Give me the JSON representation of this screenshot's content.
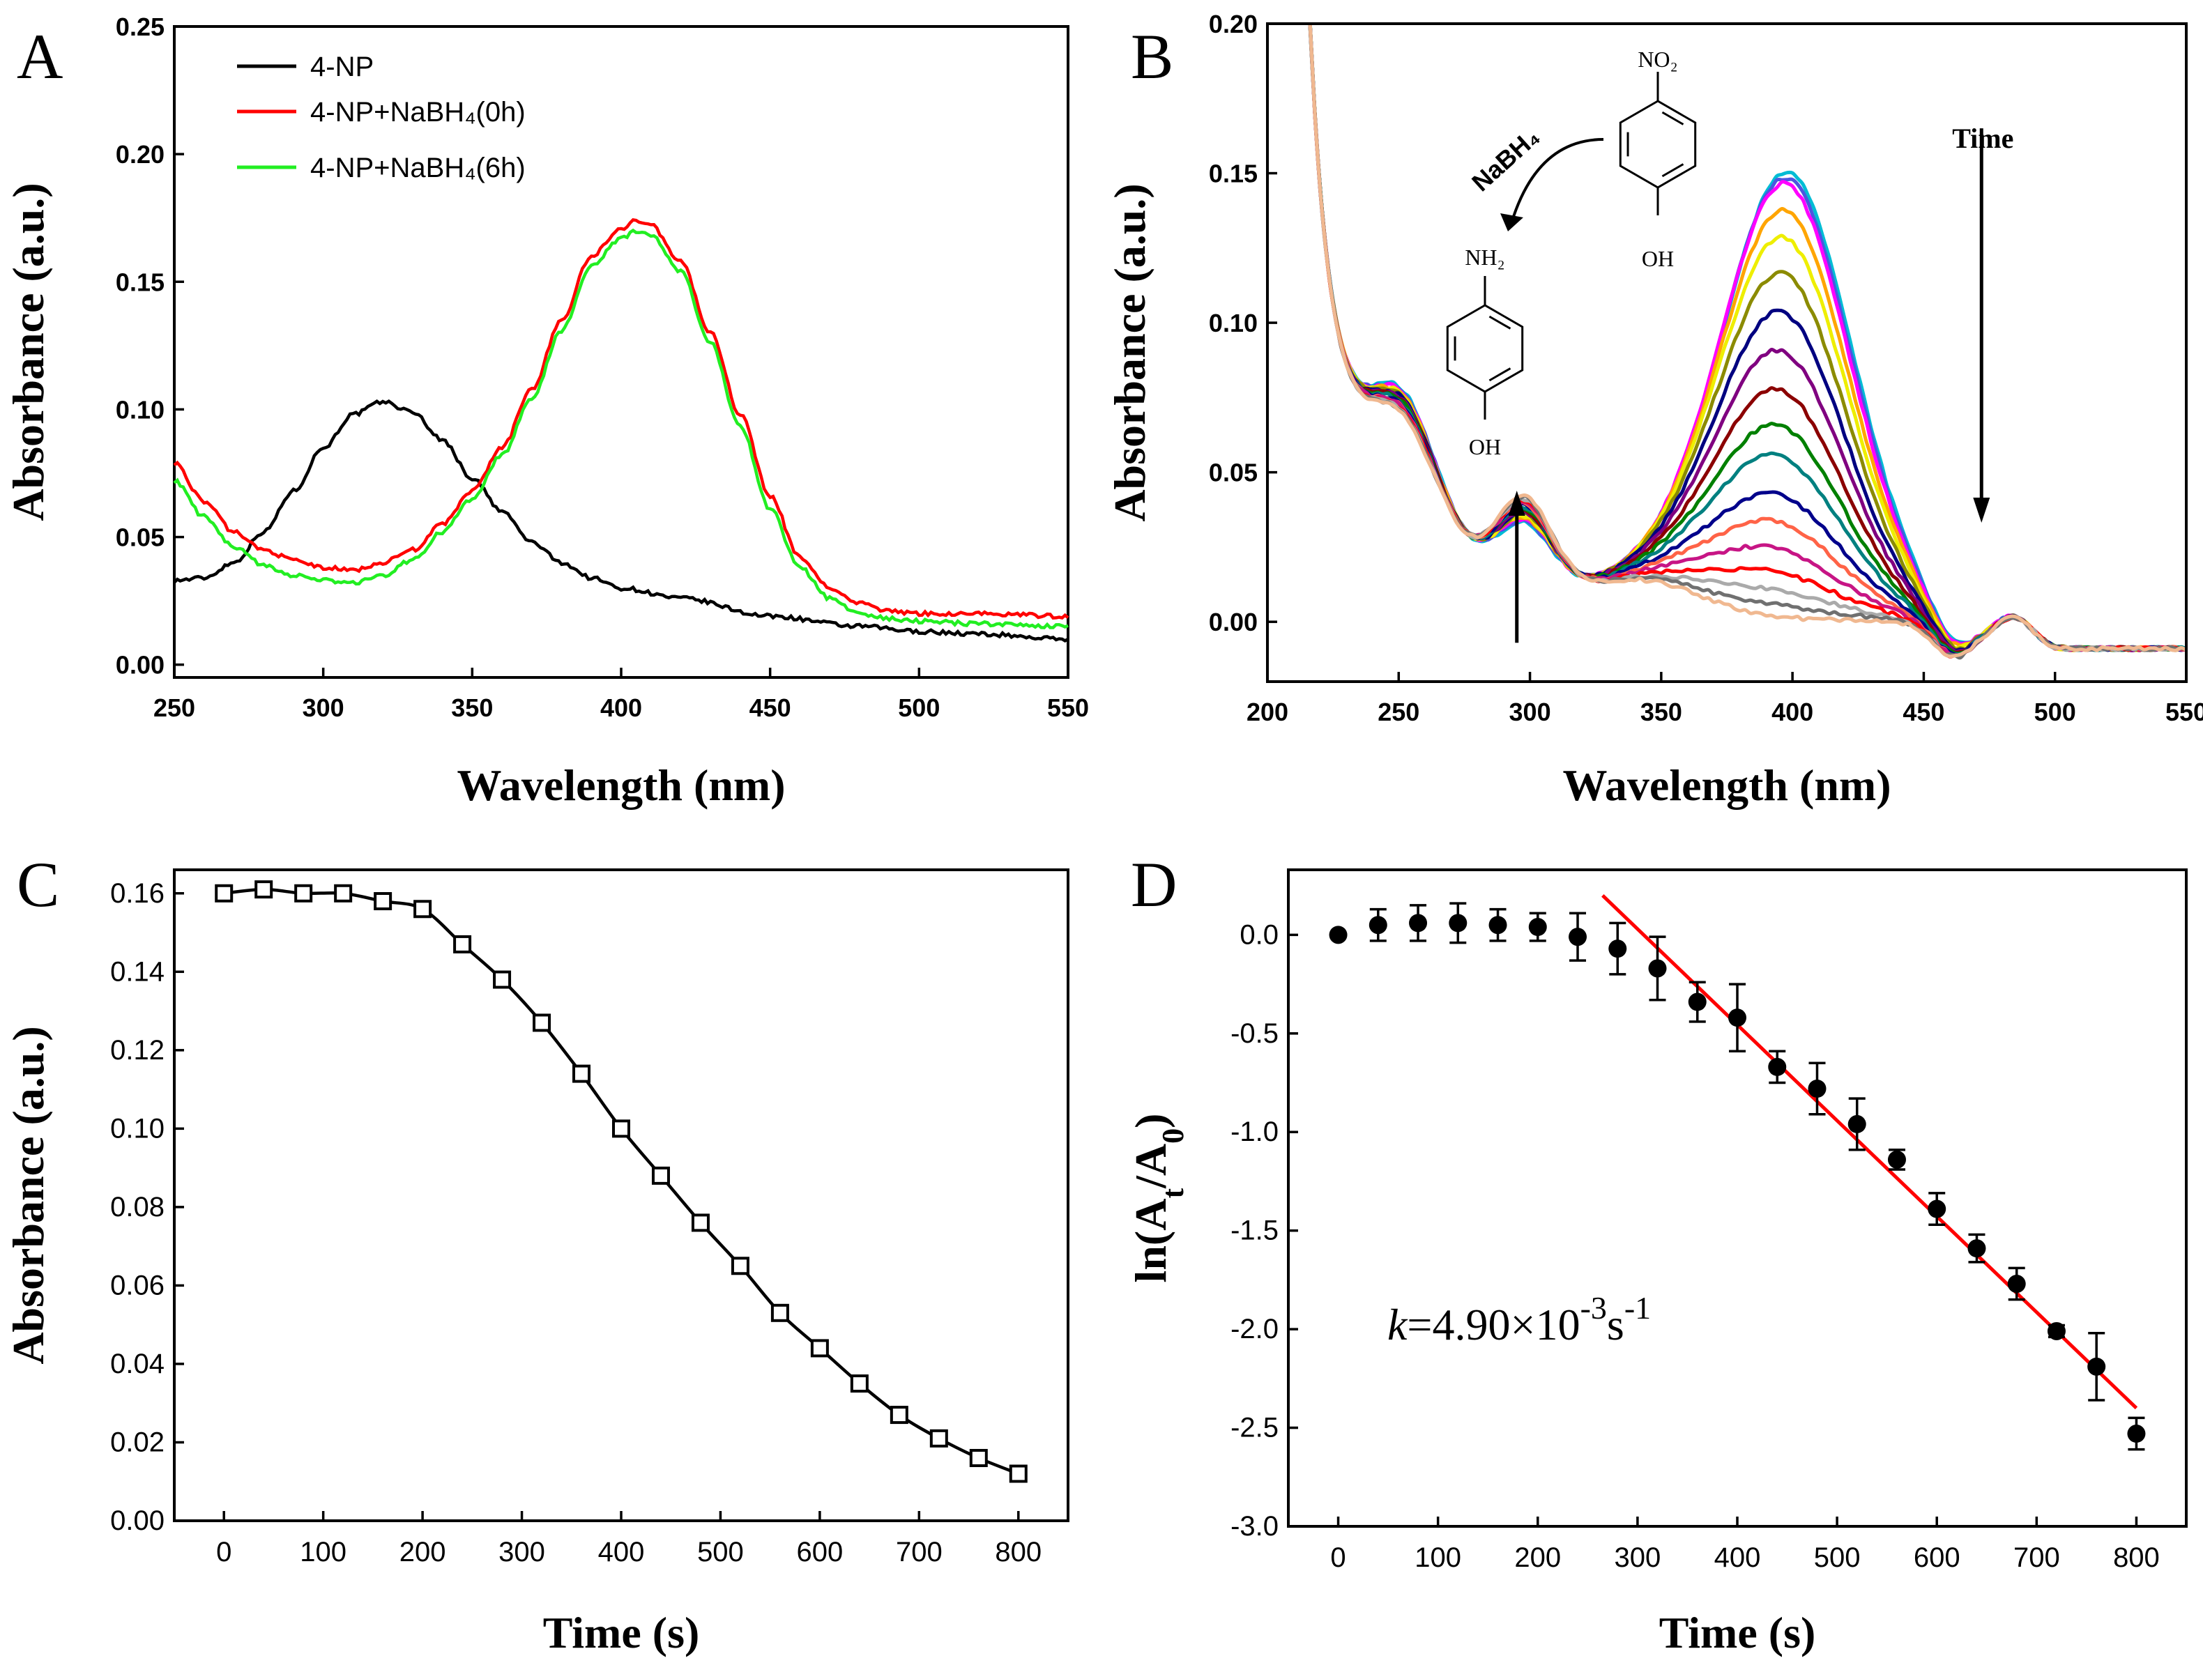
{
  "chart_data": [
    {
      "id": "A",
      "type": "line",
      "panel_label": "A",
      "xlabel": "Wavelength (nm)",
      "ylabel": "Absorbance (a.u.)",
      "xlim": [
        250,
        550
      ],
      "ylim": [
        -0.005,
        0.25
      ],
      "xticks": [
        250,
        300,
        350,
        400,
        450,
        500,
        550
      ],
      "yticks": [
        0.0,
        0.05,
        0.1,
        0.15,
        0.2,
        0.25
      ],
      "legend_position": "top-left",
      "series": [
        {
          "name": "4-NP",
          "color": "#000000",
          "x": [
            250,
            260,
            270,
            280,
            290,
            300,
            310,
            320,
            330,
            340,
            350,
            360,
            370,
            380,
            390,
            400,
            420,
            450,
            480,
            500,
            520,
            550
          ],
          "y": [
            0.033,
            0.034,
            0.04,
            0.052,
            0.068,
            0.085,
            0.098,
            0.103,
            0.099,
            0.088,
            0.073,
            0.06,
            0.048,
            0.04,
            0.034,
            0.03,
            0.026,
            0.019,
            0.015,
            0.013,
            0.012,
            0.01
          ]
        },
        {
          "name": "4-NP+NaBH₄(0h)",
          "color": "#ff0000",
          "x": [
            250,
            260,
            270,
            280,
            290,
            300,
            310,
            320,
            330,
            340,
            350,
            360,
            370,
            380,
            390,
            400,
            405,
            410,
            420,
            430,
            440,
            450,
            460,
            470,
            480,
            490,
            500,
            520,
            550
          ],
          "y": [
            0.079,
            0.064,
            0.052,
            0.045,
            0.041,
            0.038,
            0.037,
            0.04,
            0.045,
            0.055,
            0.068,
            0.085,
            0.108,
            0.135,
            0.16,
            0.171,
            0.174,
            0.172,
            0.158,
            0.13,
            0.098,
            0.066,
            0.042,
            0.03,
            0.024,
            0.021,
            0.02,
            0.02,
            0.019
          ]
        },
        {
          "name": "4-NP+NaBH₄(6h)",
          "color": "#22ee22",
          "x": [
            250,
            260,
            270,
            280,
            290,
            300,
            310,
            320,
            330,
            340,
            350,
            360,
            370,
            380,
            390,
            400,
            405,
            410,
            420,
            430,
            440,
            450,
            460,
            470,
            480,
            490,
            500,
            520,
            550
          ],
          "y": [
            0.072,
            0.058,
            0.046,
            0.039,
            0.035,
            0.033,
            0.032,
            0.035,
            0.041,
            0.052,
            0.065,
            0.082,
            0.104,
            0.131,
            0.156,
            0.167,
            0.17,
            0.168,
            0.154,
            0.126,
            0.093,
            0.061,
            0.038,
            0.026,
            0.02,
            0.018,
            0.017,
            0.016,
            0.015
          ]
        }
      ]
    },
    {
      "id": "B",
      "type": "line",
      "panel_label": "B",
      "xlabel": "Wavelength (nm)",
      "ylabel": "Absorbance (a.u.)",
      "xlim": [
        200,
        550
      ],
      "ylim": [
        -0.02,
        0.2
      ],
      "xticks": [
        200,
        250,
        300,
        350,
        400,
        450,
        500,
        550
      ],
      "yticks": [
        0.0,
        0.05,
        0.1,
        0.15,
        0.2
      ],
      "peak_heights": [
        0.161,
        0.159,
        0.157,
        0.148,
        0.139,
        0.127,
        0.114,
        0.101,
        0.088,
        0.076,
        0.066,
        0.053,
        0.044,
        0.035,
        0.027,
        0.021,
        0.016,
        0.012
      ],
      "series_colors": [
        "#00bcd4",
        "#4b56e0",
        "#ff00ff",
        "#ffa500",
        "#eeee00",
        "#8b8b00",
        "#000080",
        "#800080",
        "#8b0000",
        "#008000",
        "#008080",
        "#00008b",
        "#ff6347",
        "#c71585",
        "#ff0000",
        "#aaaaaa",
        "#707070",
        "#f0b890"
      ],
      "annotations": {
        "time_label": "Time",
        "reagent": "NaBH₄",
        "reactant_top": "NO₂",
        "reactant_bottom": "OH",
        "product_top": "NH₂",
        "product_bottom": "OH"
      }
    },
    {
      "id": "C",
      "type": "line",
      "panel_label": "C",
      "xlabel": "Time (s)",
      "ylabel": "Absorbance (a.u.)",
      "xlim": [
        -50,
        850
      ],
      "ylim": [
        0.0,
        0.166
      ],
      "xticks": [
        0,
        100,
        200,
        300,
        400,
        500,
        600,
        700,
        800
      ],
      "yticks": [
        0.0,
        0.02,
        0.04,
        0.06,
        0.08,
        0.1,
        0.12,
        0.14,
        0.16
      ],
      "marker": "open-square",
      "series": [
        {
          "name": "Absorbance",
          "x": [
            0,
            40,
            80,
            120,
            160,
            200,
            240,
            280,
            320,
            360,
            400,
            440,
            480,
            520,
            560,
            600,
            640,
            680,
            720,
            760,
            800
          ],
          "y": [
            0.16,
            0.161,
            0.16,
            0.16,
            0.158,
            0.156,
            0.147,
            0.138,
            0.127,
            0.114,
            0.1,
            0.088,
            0.076,
            0.065,
            0.053,
            0.044,
            0.035,
            0.027,
            0.021,
            0.016,
            0.012
          ]
        }
      ]
    },
    {
      "id": "D",
      "type": "scatter",
      "panel_label": "D",
      "xlabel": "Time (s)",
      "ylabel": "ln(A",
      "ylabel_sub1": "t",
      "ylabel_mid": "/A",
      "ylabel_sub2": "0",
      "ylabel_end": ")",
      "xlim": [
        -50,
        850
      ],
      "ylim": [
        -3.0,
        0.33
      ],
      "xticks": [
        0,
        100,
        200,
        300,
        400,
        500,
        600,
        700,
        800
      ],
      "yticks": [
        0.0,
        -0.5,
        -1.0,
        -1.5,
        -2.0,
        -2.5,
        -3.0
      ],
      "marker": "filled-circle",
      "series": [
        {
          "name": "ln(At/A0)",
          "x": [
            0,
            40,
            80,
            120,
            160,
            200,
            240,
            280,
            320,
            360,
            400,
            440,
            480,
            520,
            560,
            600,
            640,
            680,
            720,
            760,
            800
          ],
          "y": [
            0.0,
            0.05,
            0.06,
            0.06,
            0.05,
            0.04,
            -0.01,
            -0.07,
            -0.17,
            -0.34,
            -0.42,
            -0.67,
            -0.78,
            -0.96,
            -1.14,
            -1.39,
            -1.59,
            -1.77,
            -2.01,
            -2.19,
            -2.53
          ],
          "err": [
            0.0,
            0.08,
            0.09,
            0.1,
            0.08,
            0.07,
            0.12,
            0.13,
            0.16,
            0.1,
            0.17,
            0.08,
            0.13,
            0.13,
            0.05,
            0.08,
            0.07,
            0.08,
            0.03,
            0.17,
            0.08
          ]
        }
      ],
      "fit_line": {
        "x": [
          265,
          800
        ],
        "y": [
          0.2,
          -2.4
        ],
        "color": "#ff0000"
      },
      "annotation": {
        "k_symbol": "k",
        "k_text": "=4.90×10",
        "k_exp1": "-3",
        "k_unit": "s",
        "k_exp2": "-1"
      }
    }
  ]
}
